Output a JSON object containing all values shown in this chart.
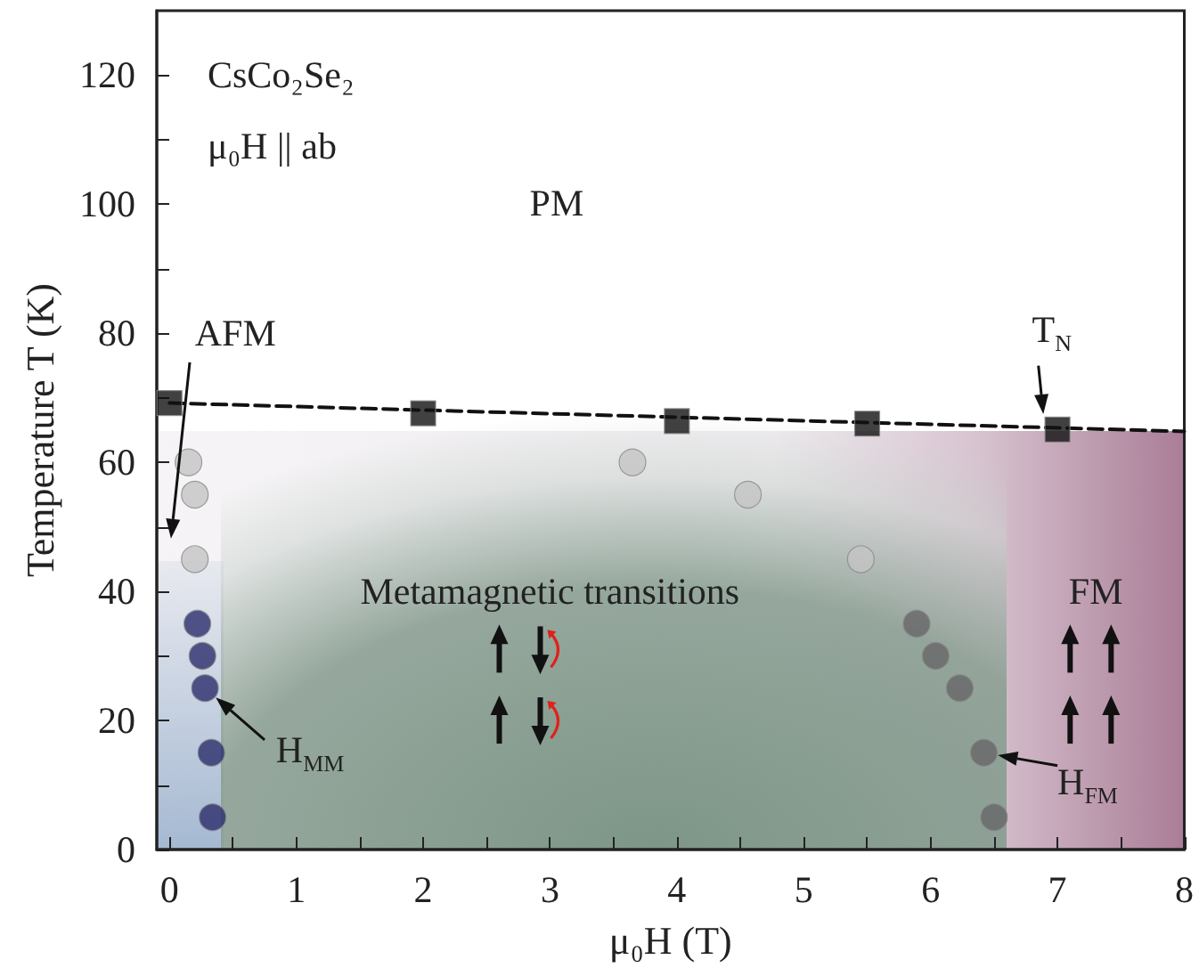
{
  "chart_data": {
    "type": "scatter",
    "xlabel": "μ₀H (T)",
    "ylabel": "Temperature T (K)",
    "xlim": [
      -0.1,
      8
    ],
    "ylim": [
      0,
      130
    ],
    "xticks": [
      0,
      {
        "value": 0.5,
        "label": null
      },
      1,
      {
        "value": 1.5,
        "label": null
      },
      2,
      {
        "value": 2.5,
        "label": null
      },
      3,
      {
        "value": 3.5,
        "label": null
      },
      4,
      {
        "value": 4.5,
        "label": null
      },
      5,
      {
        "value": 5.5,
        "label": null
      },
      6,
      {
        "value": 6.5,
        "label": null
      },
      7,
      {
        "value": 7.5,
        "label": null
      },
      8
    ],
    "yticks": [
      0,
      {
        "value": 10,
        "label": null
      },
      20,
      {
        "value": 30,
        "label": null
      },
      40,
      {
        "value": 50,
        "label": null
      },
      60,
      {
        "value": 70,
        "label": null
      },
      80,
      {
        "value": 90,
        "label": null
      },
      100,
      {
        "value": 110,
        "label": null
      },
      120
    ],
    "grid": false,
    "series": [
      {
        "type": "line",
        "x": [
          0,
          8
        ],
        "values": [
          69.2,
          64.8
        ],
        "color": "#111111",
        "line_style": "dashed",
        "marker": "none"
      },
      {
        "marker": "square",
        "color": "#111111",
        "x": [
          0,
          2,
          4,
          5.5,
          7
        ],
        "values": [
          69.2,
          67.6,
          66.4,
          66,
          65.1
        ]
      },
      {
        "marker": "circle",
        "color": "#c4c4c4",
        "x": [
          0.15,
          0.2,
          0.2,
          3.65,
          4.56,
          5.45
        ],
        "values": [
          60,
          55,
          45,
          60,
          55,
          45
        ]
      },
      {
        "marker": "circle",
        "color": "#2b2d6b",
        "x": [
          0.22,
          0.26,
          0.28,
          0.33,
          0.34
        ],
        "values": [
          35,
          30,
          25,
          15,
          5
        ]
      },
      {
        "marker": "circle",
        "color": "#666666",
        "x": [
          5.89,
          6.04,
          6.23,
          6.42,
          6.5
        ],
        "values": [
          35,
          30,
          25,
          15,
          5
        ]
      }
    ],
    "annotations": [
      "CsCo₂Se₂",
      "μ₀H || ab",
      "PM",
      "AFM",
      "Metamagnetic transitions",
      "FM",
      {
        "text": "T$_{N}$",
        "x": 6.9,
        "y": 65.3
      },
      {
        "text": "H$_{MM}$",
        "x": 0.28,
        "y": 25
      },
      {
        "text": "H$_{FM}$",
        "x": 6.42,
        "y": 15
      }
    ]
  }
}
